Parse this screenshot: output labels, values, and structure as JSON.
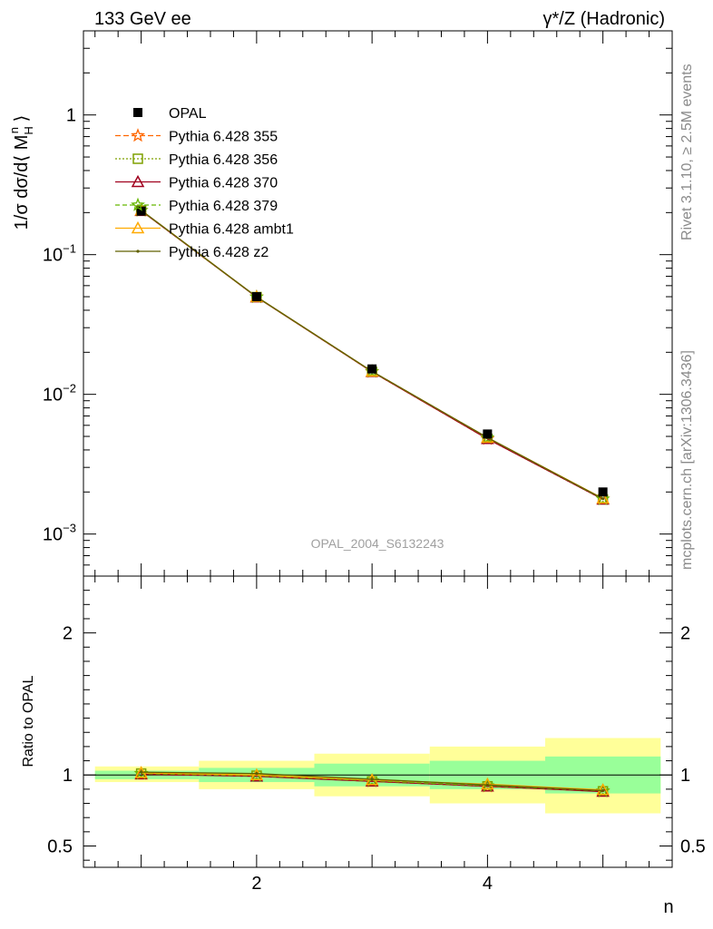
{
  "header": {
    "left": "133 GeV ee",
    "right": "γ*/Z (Hadronic)"
  },
  "side_labels": {
    "rivet": "Rivet 3.1.10, ≥ 2.5M events",
    "mcplots": "mcplots.cern.ch [arXiv:1306.3436]"
  },
  "watermark": "OPAL_2004_S6132243",
  "chart_data": [
    {
      "type": "line",
      "panel": "main",
      "ylabel": "1/σ dσ/d⟨ M_H^n ⟩",
      "yscale": "log",
      "ylim": [
        0.0005,
        4
      ],
      "xlim": [
        0.5,
        5.6
      ],
      "yticks": [
        {
          "value": 1,
          "label": "1"
        },
        {
          "value": 0.1,
          "label": "10",
          "sup": "−1"
        },
        {
          "value": 0.01,
          "label": "10",
          "sup": "−2"
        },
        {
          "value": 0.001,
          "label": "10",
          "sup": "−3"
        }
      ],
      "x": [
        1,
        2,
        3,
        4,
        5
      ],
      "data": {
        "name": "OPAL",
        "values": [
          0.205,
          0.05,
          0.0152,
          0.0052,
          0.002
        ]
      },
      "series": [
        {
          "name": "Pythia 6.428 355",
          "color": "#ff6600",
          "dash": "6,3",
          "marker": "star",
          "values": [
            0.207,
            0.0498,
            0.0145,
            0.0048,
            0.00178
          ]
        },
        {
          "name": "Pythia 6.428 356",
          "color": "#7fa000",
          "dash": "2,2",
          "marker": "square",
          "values": [
            0.207,
            0.0497,
            0.0145,
            0.0048,
            0.00177
          ]
        },
        {
          "name": "Pythia 6.428 370",
          "color": "#a0001e",
          "dash": "",
          "marker": "triangle",
          "values": [
            0.206,
            0.0496,
            0.0145,
            0.0048,
            0.00177
          ]
        },
        {
          "name": "Pythia 6.428 379",
          "color": "#66b800",
          "dash": "5,3",
          "marker": "star",
          "values": [
            0.207,
            0.0497,
            0.0146,
            0.0049,
            0.00178
          ]
        },
        {
          "name": "Pythia 6.428 ambt1",
          "color": "#ffaa00",
          "dash": "",
          "marker": "triangle",
          "values": [
            0.208,
            0.0499,
            0.0146,
            0.0049,
            0.0018
          ]
        },
        {
          "name": "Pythia 6.428 z2",
          "color": "#606000",
          "dash": "",
          "marker": "dot",
          "values": [
            0.208,
            0.0499,
            0.0146,
            0.0049,
            0.00179
          ]
        }
      ]
    },
    {
      "type": "line",
      "panel": "ratio",
      "ylabel": "Ratio to OPAL",
      "xlabel": "n",
      "ylim": [
        0.35,
        2.4
      ],
      "xlim": [
        0.5,
        5.6
      ],
      "yticks": [
        {
          "value": 2,
          "label": "2"
        },
        {
          "value": 1,
          "label": "1"
        },
        {
          "value": 0.5,
          "label": "0.5"
        }
      ],
      "xticks": [
        2,
        4
      ],
      "bands": [
        {
          "xmin": 0.6,
          "xmax": 1.5,
          "stat": [
            0.97,
            1.03
          ],
          "total": [
            0.95,
            1.06
          ]
        },
        {
          "xmin": 1.5,
          "xmax": 2.5,
          "stat": [
            0.95,
            1.05
          ],
          "total": [
            0.9,
            1.1
          ]
        },
        {
          "xmin": 2.5,
          "xmax": 3.5,
          "stat": [
            0.92,
            1.08
          ],
          "total": [
            0.85,
            1.15
          ]
        },
        {
          "xmin": 3.5,
          "xmax": 4.5,
          "stat": [
            0.9,
            1.1
          ],
          "total": [
            0.8,
            1.2
          ]
        },
        {
          "xmin": 4.5,
          "xmax": 5.5,
          "stat": [
            0.87,
            1.13
          ],
          "total": [
            0.73,
            1.26
          ]
        }
      ],
      "x": [
        1,
        2,
        3,
        4,
        5
      ],
      "series": [
        {
          "name": "Pythia 6.428 355",
          "values": [
            1.01,
            0.995,
            0.955,
            0.92,
            0.885
          ]
        },
        {
          "name": "Pythia 6.428 356",
          "values": [
            1.01,
            0.995,
            0.955,
            0.92,
            0.885
          ]
        },
        {
          "name": "Pythia 6.428 370",
          "values": [
            1.005,
            0.99,
            0.955,
            0.92,
            0.883
          ]
        },
        {
          "name": "Pythia 6.428 379",
          "values": [
            1.01,
            0.995,
            0.96,
            0.925,
            0.888
          ]
        },
        {
          "name": "Pythia 6.428 ambt1",
          "values": [
            1.015,
            1.0,
            0.965,
            0.935,
            0.895
          ]
        },
        {
          "name": "Pythia 6.428 z2",
          "values": [
            1.02,
            1.01,
            0.97,
            0.93,
            0.89
          ]
        }
      ]
    }
  ]
}
